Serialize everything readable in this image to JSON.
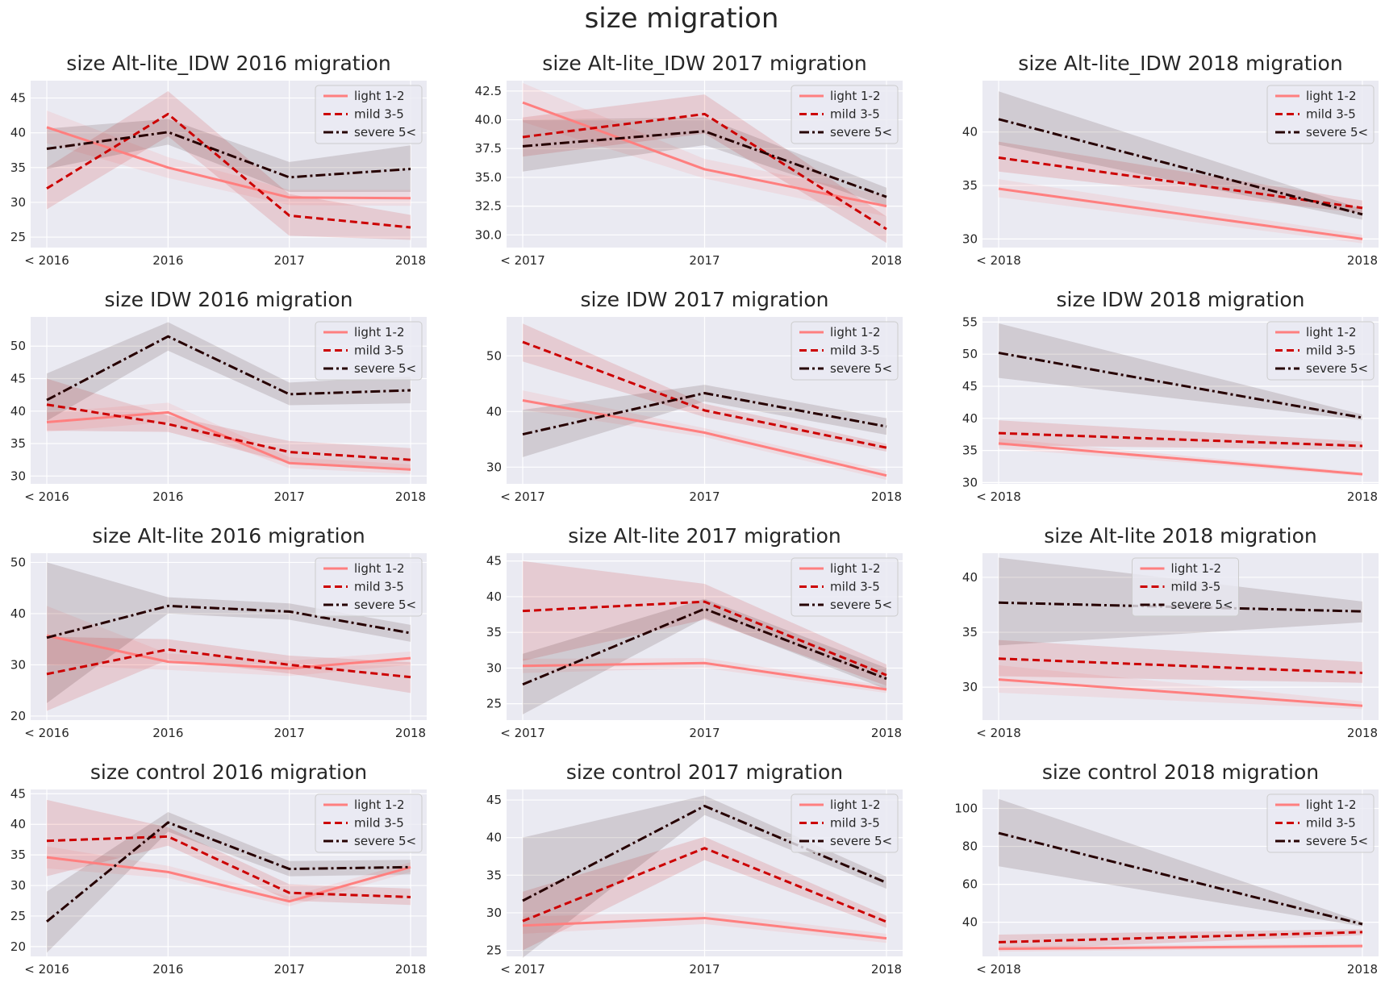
{
  "figure": {
    "title": "size migration"
  },
  "style": {
    "axes_bg": "#EAEAF2",
    "grid": "#FFFFFF",
    "colors": {
      "light": "#FF7F7F",
      "mild": "#CC0000",
      "severe": "#260000"
    },
    "band_alpha": 0.13
  },
  "chart_data": [
    {
      "type": "line",
      "title": "size Alt-lite_IDW 2016 migration",
      "categories": [
        "< 2016",
        "2016",
        "2017",
        "2018"
      ],
      "ylim": [
        23.5,
        47.5
      ],
      "yticks": [
        25,
        30,
        35,
        40,
        45
      ],
      "legend": "top-right",
      "series": [
        {
          "name": "light 1-2",
          "style": "solid",
          "values": [
            40.8,
            35.0,
            30.7,
            30.6
          ],
          "lower": [
            38.5,
            33.5,
            29.6,
            29.5
          ],
          "upper": [
            43.2,
            36.5,
            31.8,
            31.8
          ]
        },
        {
          "name": "mild 3-5",
          "style": "dashed",
          "values": [
            32.0,
            42.7,
            28.1,
            26.4
          ],
          "lower": [
            29.0,
            39.5,
            25.2,
            24.6
          ],
          "upper": [
            35.0,
            46.0,
            31.2,
            28.2
          ]
        },
        {
          "name": "severe 5<",
          "style": "dashdot",
          "values": [
            37.7,
            40.1,
            33.6,
            34.8
          ],
          "lower": [
            34.8,
            38.3,
            31.5,
            31.5
          ],
          "upper": [
            40.6,
            42.0,
            35.8,
            38.2
          ]
        }
      ]
    },
    {
      "type": "line",
      "title": "size Alt-lite_IDW 2017 migration",
      "categories": [
        "< 2017",
        "2017",
        "2018"
      ],
      "ylim": [
        28.9,
        43.4
      ],
      "yticks": [
        30.0,
        32.5,
        35.0,
        37.5,
        40.0,
        42.5
      ],
      "ytick_labels": [
        "30.0",
        "32.5",
        "35.0",
        "37.5",
        "40.0",
        "42.5"
      ],
      "legend": "top-right",
      "series": [
        {
          "name": "light 1-2",
          "style": "solid",
          "values": [
            41.5,
            35.7,
            32.5
          ],
          "lower": [
            39.8,
            34.9,
            31.6
          ],
          "upper": [
            43.2,
            36.6,
            33.4
          ]
        },
        {
          "name": "mild 3-5",
          "style": "dashed",
          "values": [
            38.5,
            40.5,
            30.5
          ],
          "lower": [
            36.8,
            38.8,
            29.3
          ],
          "upper": [
            40.2,
            42.2,
            31.6
          ]
        },
        {
          "name": "severe 5<",
          "style": "dashdot",
          "values": [
            37.7,
            39.0,
            33.3
          ],
          "lower": [
            35.5,
            37.8,
            32.5
          ],
          "upper": [
            40.0,
            40.2,
            34.1
          ]
        }
      ]
    },
    {
      "type": "line",
      "title": "size Alt-lite_IDW 2018 migration",
      "categories": [
        "< 2018",
        "2018"
      ],
      "ylim": [
        29.2,
        44.8
      ],
      "yticks": [
        30,
        35,
        40
      ],
      "legend": "top-right",
      "series": [
        {
          "name": "light 1-2",
          "style": "solid",
          "values": [
            34.7,
            30.0
          ],
          "lower": [
            33.9,
            29.6
          ],
          "upper": [
            35.6,
            30.4
          ]
        },
        {
          "name": "mild 3-5",
          "style": "dashed",
          "values": [
            37.6,
            32.9
          ],
          "lower": [
            36.3,
            32.4
          ],
          "upper": [
            39.1,
            33.6
          ]
        },
        {
          "name": "severe 5<",
          "style": "dashdot",
          "values": [
            41.2,
            32.3
          ],
          "lower": [
            38.8,
            31.8
          ],
          "upper": [
            43.8,
            32.8
          ]
        }
      ]
    },
    {
      "type": "line",
      "title": "size IDW 2016 migration",
      "categories": [
        "< 2016",
        "2016",
        "2017",
        "2018"
      ],
      "ylim": [
        28.8,
        54.5
      ],
      "yticks": [
        30,
        35,
        40,
        45,
        50
      ],
      "legend": "top-right",
      "series": [
        {
          "name": "light 1-2",
          "style": "solid",
          "values": [
            38.3,
            39.8,
            32.0,
            31.0
          ],
          "lower": [
            36.8,
            38.3,
            31.2,
            30.3
          ],
          "upper": [
            39.8,
            41.3,
            32.9,
            31.8
          ]
        },
        {
          "name": "mild 3-5",
          "style": "dashed",
          "values": [
            41.0,
            38.0,
            33.7,
            32.5
          ],
          "lower": [
            37.0,
            36.8,
            32.0,
            30.8
          ],
          "upper": [
            45.0,
            39.3,
            35.4,
            34.3
          ]
        },
        {
          "name": "severe 5<",
          "style": "dashdot",
          "values": [
            41.7,
            51.5,
            42.6,
            43.2
          ],
          "lower": [
            38.5,
            49.3,
            40.9,
            41.2
          ],
          "upper": [
            45.8,
            53.7,
            44.4,
            45.3
          ]
        }
      ]
    },
    {
      "type": "line",
      "title": "size IDW 2017 migration",
      "categories": [
        "< 2017",
        "2017",
        "2018"
      ],
      "ylim": [
        27.0,
        57.0
      ],
      "yticks": [
        30,
        40,
        50
      ],
      "legend": "top-right",
      "series": [
        {
          "name": "light 1-2",
          "style": "solid",
          "values": [
            42.0,
            36.2,
            28.5
          ],
          "lower": [
            40.3,
            35.4,
            27.7
          ],
          "upper": [
            43.8,
            37.0,
            29.3
          ]
        },
        {
          "name": "mild 3-5",
          "style": "dashed",
          "values": [
            52.5,
            40.2,
            33.5
          ],
          "lower": [
            49.0,
            39.0,
            32.8
          ],
          "upper": [
            55.8,
            41.4,
            34.2
          ]
        },
        {
          "name": "severe 5<",
          "style": "dashdot",
          "values": [
            35.9,
            43.3,
            37.3
          ],
          "lower": [
            31.8,
            41.8,
            35.8
          ],
          "upper": [
            40.3,
            44.8,
            38.8
          ]
        }
      ]
    },
    {
      "type": "line",
      "title": "size IDW 2018 migration",
      "categories": [
        "< 2018",
        "2018"
      ],
      "ylim": [
        29.8,
        55.8
      ],
      "yticks": [
        30,
        35,
        40,
        45,
        50,
        55
      ],
      "legend": "top-right",
      "series": [
        {
          "name": "light 1-2",
          "style": "solid",
          "values": [
            36.1,
            31.3
          ],
          "lower": [
            35.3,
            31.0
          ],
          "upper": [
            36.9,
            31.6
          ]
        },
        {
          "name": "mild 3-5",
          "style": "dashed",
          "values": [
            37.7,
            35.7
          ],
          "lower": [
            35.8,
            35.1
          ],
          "upper": [
            39.7,
            36.4
          ]
        },
        {
          "name": "severe 5<",
          "style": "dashdot",
          "values": [
            50.2,
            40.1
          ],
          "lower": [
            46.3,
            39.7
          ],
          "upper": [
            54.8,
            40.6
          ]
        }
      ]
    },
    {
      "type": "line",
      "title": "size Alt-lite 2016 migration",
      "categories": [
        "< 2016",
        "2016",
        "2017",
        "2018"
      ],
      "ylim": [
        19.2,
        51.8
      ],
      "yticks": [
        20,
        30,
        40,
        50
      ],
      "legend": "top-right",
      "series": [
        {
          "name": "light 1-2",
          "style": "solid",
          "values": [
            35.7,
            30.6,
            29.3,
            31.3
          ],
          "lower": [
            30.0,
            29.0,
            27.8,
            30.0
          ],
          "upper": [
            41.5,
            32.2,
            30.8,
            32.6
          ]
        },
        {
          "name": "mild 3-5",
          "style": "dashed",
          "values": [
            28.2,
            33.0,
            30.0,
            27.6
          ],
          "lower": [
            21.0,
            31.0,
            28.3,
            24.5
          ],
          "upper": [
            35.5,
            35.0,
            31.8,
            30.5
          ]
        },
        {
          "name": "severe 5<",
          "style": "dashdot",
          "values": [
            35.3,
            41.5,
            40.4,
            36.2
          ],
          "lower": [
            22.5,
            40.0,
            38.8,
            34.5
          ],
          "upper": [
            50.0,
            43.2,
            42.0,
            37.8
          ]
        }
      ]
    },
    {
      "type": "line",
      "title": "size Alt-lite 2017 migration",
      "categories": [
        "< 2017",
        "2017",
        "2018"
      ],
      "ylim": [
        22.7,
        46.1
      ],
      "yticks": [
        25,
        30,
        35,
        40,
        45
      ],
      "legend": "top-right",
      "series": [
        {
          "name": "light 1-2",
          "style": "solid",
          "values": [
            30.3,
            30.7,
            27.0
          ],
          "lower": [
            29.3,
            30.0,
            26.5
          ],
          "upper": [
            31.3,
            31.4,
            27.5
          ]
        },
        {
          "name": "mild 3-5",
          "style": "dashed",
          "values": [
            38.0,
            39.3,
            29.0
          ],
          "lower": [
            31.0,
            36.8,
            27.5
          ],
          "upper": [
            45.0,
            41.8,
            30.5
          ]
        },
        {
          "name": "severe 5<",
          "style": "dashdot",
          "values": [
            27.7,
            38.3,
            28.5
          ],
          "lower": [
            23.5,
            37.0,
            27.0
          ],
          "upper": [
            32.0,
            39.7,
            30.0
          ]
        }
      ]
    },
    {
      "type": "line",
      "title": "size Alt-lite 2018 migration",
      "categories": [
        "< 2018",
        "2018"
      ],
      "ylim": [
        27.0,
        42.2
      ],
      "yticks": [
        30,
        35,
        40
      ],
      "legend": "top-center",
      "series": [
        {
          "name": "light 1-2",
          "style": "solid",
          "values": [
            30.7,
            28.3
          ],
          "lower": [
            29.5,
            28.0
          ],
          "upper": [
            32.0,
            28.7
          ]
        },
        {
          "name": "mild 3-5",
          "style": "dashed",
          "values": [
            32.6,
            31.3
          ],
          "lower": [
            31.0,
            30.4
          ],
          "upper": [
            34.3,
            32.3
          ]
        },
        {
          "name": "severe 5<",
          "style": "dashdot",
          "values": [
            37.7,
            36.9
          ],
          "lower": [
            33.8,
            35.9
          ],
          "upper": [
            41.8,
            37.8
          ]
        }
      ]
    },
    {
      "type": "line",
      "title": "size control 2016 migration",
      "categories": [
        "< 2016",
        "2016",
        "2017",
        "2018"
      ],
      "ylim": [
        18.4,
        45.7
      ],
      "yticks": [
        20,
        25,
        30,
        35,
        40,
        45
      ],
      "legend": "top-right",
      "series": [
        {
          "name": "light 1-2",
          "style": "solid",
          "values": [
            34.6,
            32.2,
            27.4,
            33.0
          ],
          "lower": [
            32.8,
            31.2,
            26.6,
            32.2
          ],
          "upper": [
            36.4,
            33.2,
            28.2,
            33.8
          ]
        },
        {
          "name": "mild 3-5",
          "style": "dashed",
          "values": [
            37.3,
            38.0,
            28.8,
            28.1
          ],
          "lower": [
            31.5,
            36.5,
            27.5,
            26.8
          ],
          "upper": [
            44.0,
            39.5,
            30.2,
            29.5
          ]
        },
        {
          "name": "severe 5<",
          "style": "dashdot",
          "values": [
            24.1,
            40.3,
            32.7,
            33.0
          ],
          "lower": [
            19.0,
            38.8,
            31.5,
            31.8
          ],
          "upper": [
            29.0,
            42.0,
            34.0,
            34.2
          ]
        }
      ]
    },
    {
      "type": "line",
      "title": "size control 2017 migration",
      "categories": [
        "< 2017",
        "2017",
        "2018"
      ],
      "ylim": [
        24.2,
        46.4
      ],
      "yticks": [
        25,
        30,
        35,
        40,
        45
      ],
      "legend": "top-right",
      "series": [
        {
          "name": "light 1-2",
          "style": "solid",
          "values": [
            28.3,
            29.3,
            26.6
          ],
          "lower": [
            27.2,
            28.5,
            26.0
          ],
          "upper": [
            29.5,
            30.1,
            27.2
          ]
        },
        {
          "name": "mild 3-5",
          "style": "dashed",
          "values": [
            28.9,
            38.6,
            28.8
          ],
          "lower": [
            25.0,
            37.0,
            28.0
          ],
          "upper": [
            32.8,
            40.1,
            29.6
          ]
        },
        {
          "name": "severe 5<",
          "style": "dashdot",
          "values": [
            31.6,
            44.2,
            34.0
          ],
          "lower": [
            24.0,
            43.0,
            33.2
          ],
          "upper": [
            40.0,
            45.6,
            34.8
          ]
        }
      ]
    },
    {
      "type": "line",
      "title": "size control 2018 migration",
      "categories": [
        "< 2018",
        "2018"
      ],
      "ylim": [
        22.0,
        110.0
      ],
      "yticks": [
        40,
        60,
        80,
        100
      ],
      "legend": "top-right",
      "series": [
        {
          "name": "light 1-2",
          "style": "solid",
          "values": [
            26.0,
            27.5
          ],
          "lower": [
            24.5,
            26.3
          ],
          "upper": [
            27.5,
            28.6
          ]
        },
        {
          "name": "mild 3-5",
          "style": "dashed",
          "values": [
            29.5,
            34.8
          ],
          "lower": [
            25.5,
            33.2
          ],
          "upper": [
            33.5,
            36.3
          ]
        },
        {
          "name": "severe 5<",
          "style": "dashdot",
          "values": [
            87.0,
            39.0
          ],
          "lower": [
            69.5,
            37.8
          ],
          "upper": [
            105.0,
            40.2
          ]
        }
      ]
    }
  ]
}
